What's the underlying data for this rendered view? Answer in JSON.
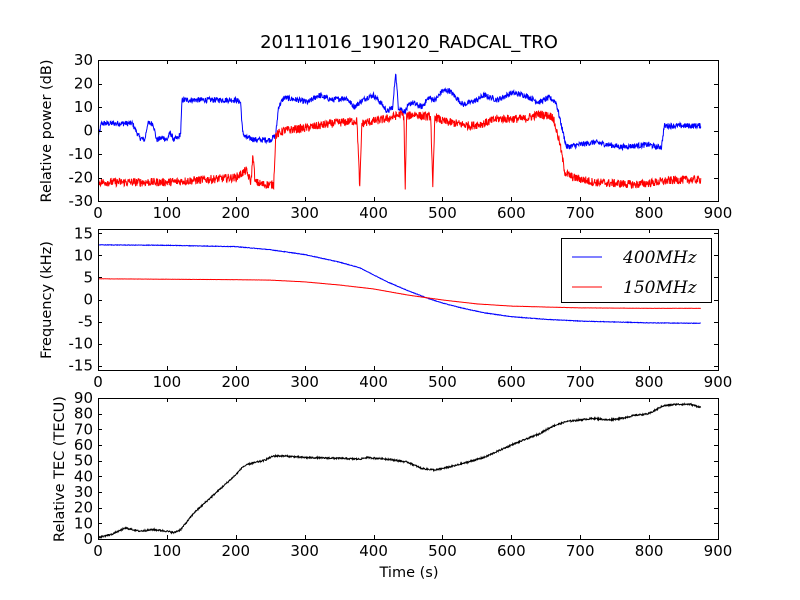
{
  "figure": {
    "title": "20111016_190120_RADCAL_TRO"
  },
  "chart_data": [
    {
      "type": "line",
      "panel": "top",
      "ylabel": "Relative power (dB)",
      "xlabel": "",
      "xlim": [
        0,
        900
      ],
      "ylim": [
        -30,
        30
      ],
      "xticks": [
        0,
        100,
        200,
        300,
        400,
        500,
        600,
        700,
        800,
        900
      ],
      "yticks": [
        -30,
        -20,
        -10,
        0,
        10,
        20,
        30
      ],
      "grid": false,
      "series": [
        {
          "color": "#0000ff",
          "noise": 1.2,
          "points": [
            [
              0,
              -3
            ],
            [
              5,
              3
            ],
            [
              10,
              3
            ],
            [
              50,
              3
            ],
            [
              60,
              -3
            ],
            [
              68,
              -4
            ],
            [
              72,
              3
            ],
            [
              80,
              3
            ],
            [
              85,
              -4
            ],
            [
              95,
              -3
            ],
            [
              100,
              -4
            ],
            [
              105,
              -1
            ],
            [
              110,
              -4
            ],
            [
              117,
              -3
            ],
            [
              120,
              -1
            ],
            [
              122,
              13
            ],
            [
              150,
              13
            ],
            [
              200,
              13
            ],
            [
              207,
              12
            ],
            [
              210,
              -1
            ],
            [
              215,
              -3
            ],
            [
              230,
              -4
            ],
            [
              250,
              -4
            ],
            [
              258,
              -2
            ],
            [
              262,
              10
            ],
            [
              270,
              14
            ],
            [
              290,
              13
            ],
            [
              305,
              12
            ],
            [
              320,
              15
            ],
            [
              340,
              13
            ],
            [
              360,
              14
            ],
            [
              372,
              10
            ],
            [
              380,
              12
            ],
            [
              390,
              14
            ],
            [
              400,
              15
            ],
            [
              410,
              12
            ],
            [
              420,
              8
            ],
            [
              428,
              10
            ],
            [
              432,
              25
            ],
            [
              436,
              10
            ],
            [
              445,
              8
            ],
            [
              455,
              12
            ],
            [
              470,
              10
            ],
            [
              480,
              14
            ],
            [
              490,
              13
            ],
            [
              500,
              17
            ],
            [
              510,
              17
            ],
            [
              520,
              14
            ],
            [
              530,
              11
            ],
            [
              540,
              12
            ],
            [
              550,
              13
            ],
            [
              560,
              15
            ],
            [
              580,
              13
            ],
            [
              600,
              16
            ],
            [
              620,
              15
            ],
            [
              640,
              12
            ],
            [
              655,
              14
            ],
            [
              665,
              12
            ],
            [
              672,
              3
            ],
            [
              680,
              -7
            ],
            [
              700,
              -6
            ],
            [
              720,
              -5
            ],
            [
              760,
              -7
            ],
            [
              800,
              -6
            ],
            [
              810,
              -7
            ],
            [
              818,
              -7
            ],
            [
              822,
              2
            ],
            [
              850,
              2
            ],
            [
              875,
              2
            ]
          ]
        },
        {
          "color": "#ff0000",
          "noise": 1.8,
          "points": [
            [
              0,
              -22
            ],
            [
              50,
              -22
            ],
            [
              100,
              -22
            ],
            [
              150,
              -21
            ],
            [
              200,
              -20
            ],
            [
              215,
              -17
            ],
            [
              222,
              -22
            ],
            [
              225,
              -10
            ],
            [
              228,
              -22
            ],
            [
              240,
              -23
            ],
            [
              255,
              -23
            ],
            [
              258,
              -2
            ],
            [
              270,
              0
            ],
            [
              300,
              1
            ],
            [
              340,
              3
            ],
            [
              370,
              4
            ],
            [
              376,
              4
            ],
            [
              380,
              -25
            ],
            [
              383,
              3
            ],
            [
              400,
              4
            ],
            [
              420,
              5
            ],
            [
              440,
              7
            ],
            [
              444,
              6
            ],
            [
              446,
              -25
            ],
            [
              448,
              6
            ],
            [
              460,
              7
            ],
            [
              470,
              6
            ],
            [
              483,
              6
            ],
            [
              486,
              -25
            ],
            [
              489,
              6
            ],
            [
              500,
              4
            ],
            [
              520,
              3
            ],
            [
              540,
              2
            ],
            [
              560,
              3
            ],
            [
              580,
              5
            ],
            [
              600,
              5
            ],
            [
              620,
              5
            ],
            [
              640,
              7
            ],
            [
              660,
              6
            ],
            [
              670,
              -5
            ],
            [
              678,
              -18
            ],
            [
              690,
              -20
            ],
            [
              720,
              -22
            ],
            [
              780,
              -23
            ],
            [
              840,
              -21
            ],
            [
              875,
              -21
            ]
          ]
        }
      ]
    },
    {
      "type": "line",
      "panel": "middle",
      "ylabel": "Frequency (kHz)",
      "xlabel": "",
      "xlim": [
        0,
        900
      ],
      "ylim": [
        -16,
        16
      ],
      "xticks": [
        0,
        100,
        200,
        300,
        400,
        500,
        600,
        700,
        800,
        900
      ],
      "yticks": [
        -15,
        -10,
        -5,
        0,
        5,
        10,
        15
      ],
      "grid": false,
      "legend": "top-right",
      "series": [
        {
          "name": "400MHz",
          "color": "#0000ff",
          "noise": 0.06,
          "points": [
            [
              0,
              12.4
            ],
            [
              100,
              12.3
            ],
            [
              200,
              12.0
            ],
            [
              250,
              11.3
            ],
            [
              300,
              10.2
            ],
            [
              350,
              8.5
            ],
            [
              380,
              7.2
            ],
            [
              420,
              4.0
            ],
            [
              450,
              2.0
            ],
            [
              480,
              0.2
            ],
            [
              500,
              -0.8
            ],
            [
              530,
              -2.0
            ],
            [
              560,
              -3.0
            ],
            [
              600,
              -3.9
            ],
            [
              650,
              -4.5
            ],
            [
              700,
              -4.9
            ],
            [
              750,
              -5.1
            ],
            [
              800,
              -5.3
            ],
            [
              875,
              -5.4
            ]
          ]
        },
        {
          "name": "150MHz",
          "color": "#ff0000",
          "noise": 0.02,
          "points": [
            [
              0,
              4.7
            ],
            [
              100,
              4.6
            ],
            [
              200,
              4.5
            ],
            [
              250,
              4.4
            ],
            [
              300,
              4.0
            ],
            [
              350,
              3.3
            ],
            [
              400,
              2.4
            ],
            [
              450,
              1.0
            ],
            [
              500,
              -0.1
            ],
            [
              550,
              -1.0
            ],
            [
              600,
              -1.5
            ],
            [
              650,
              -1.7
            ],
            [
              700,
              -1.9
            ],
            [
              800,
              -2.0
            ],
            [
              875,
              -2.0
            ]
          ]
        }
      ]
    },
    {
      "type": "line",
      "panel": "bottom",
      "ylabel": "Relative TEC (TECU)",
      "xlabel": "Time (s)",
      "xlim": [
        0,
        900
      ],
      "ylim": [
        0,
        90
      ],
      "xticks": [
        0,
        100,
        200,
        300,
        400,
        500,
        600,
        700,
        800,
        900
      ],
      "yticks": [
        0,
        10,
        20,
        30,
        40,
        50,
        60,
        70,
        80,
        90
      ],
      "grid": false,
      "series": [
        {
          "color": "#000000",
          "noise": 0.5,
          "points": [
            [
              0,
              1
            ],
            [
              10,
              2
            ],
            [
              20,
              3
            ],
            [
              30,
              5
            ],
            [
              40,
              7
            ],
            [
              50,
              6
            ],
            [
              60,
              5
            ],
            [
              80,
              6
            ],
            [
              100,
              5
            ],
            [
              110,
              4
            ],
            [
              120,
              6
            ],
            [
              140,
              17
            ],
            [
              160,
              25
            ],
            [
              180,
              33
            ],
            [
              200,
              41
            ],
            [
              210,
              46
            ],
            [
              220,
              48
            ],
            [
              240,
              50
            ],
            [
              255,
              53
            ],
            [
              270,
              53
            ],
            [
              300,
              52
            ],
            [
              350,
              51.5
            ],
            [
              380,
              51
            ],
            [
              390,
              52
            ],
            [
              420,
              51
            ],
            [
              450,
              49
            ],
            [
              470,
              45
            ],
            [
              490,
              44
            ],
            [
              520,
              47
            ],
            [
              560,
              52
            ],
            [
              600,
              60
            ],
            [
              640,
              67
            ],
            [
              660,
              72
            ],
            [
              680,
              75
            ],
            [
              700,
              76
            ],
            [
              720,
              77
            ],
            [
              740,
              76
            ],
            [
              760,
              77
            ],
            [
              780,
              79
            ],
            [
              800,
              80
            ],
            [
              820,
              85
            ],
            [
              840,
              86
            ],
            [
              860,
              86
            ],
            [
              875,
              84
            ]
          ]
        }
      ]
    }
  ]
}
